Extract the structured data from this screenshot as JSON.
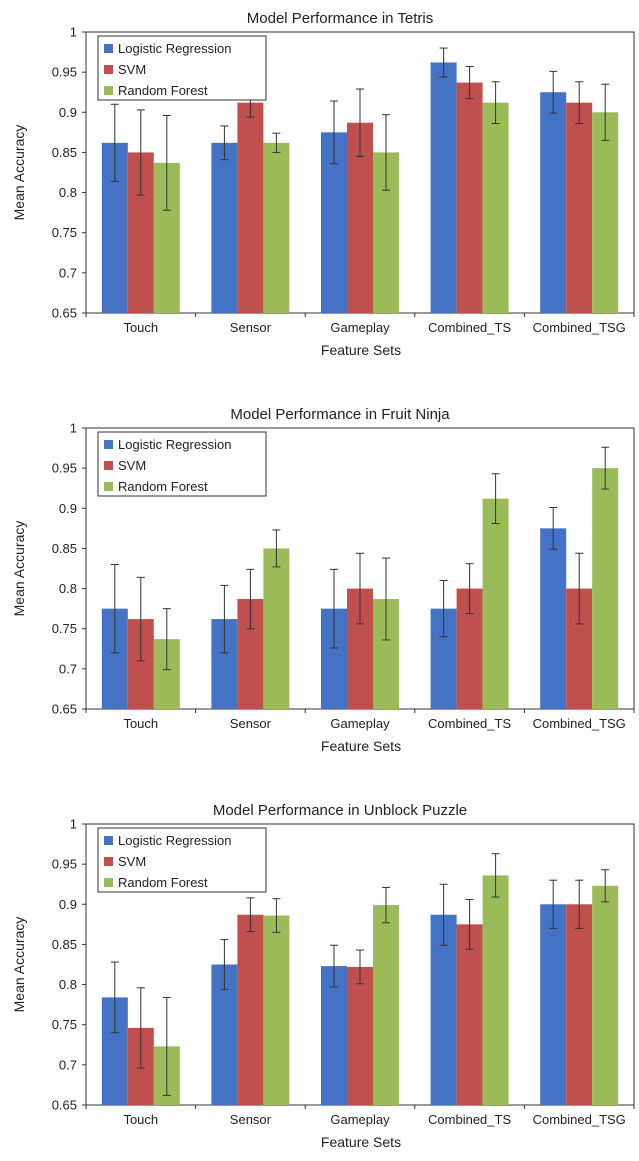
{
  "chart_data": [
    {
      "type": "bar",
      "title": "Model Performance in Tetris",
      "xlabel": "Feature Sets",
      "ylabel": "Mean Accuracy",
      "ylim": [
        0.65,
        1
      ],
      "yticks": [
        "0.65",
        "0.7",
        "0.75",
        "0.8",
        "0.85",
        "0.9",
        "0.95",
        "1"
      ],
      "categories": [
        "Touch",
        "Sensor",
        "Gameplay",
        "Combined_TS",
        "Combined_TSG"
      ],
      "legend_position": "top-left",
      "series": [
        {
          "name": "Logistic Regression",
          "color": "#4472C4",
          "values": [
            0.862,
            0.862,
            0.875,
            0.962,
            0.925
          ],
          "errors": [
            0.048,
            0.021,
            0.039,
            0.018,
            0.026
          ]
        },
        {
          "name": "SVM",
          "color": "#C0504D",
          "values": [
            0.85,
            0.912,
            0.887,
            0.937,
            0.912
          ],
          "errors": [
            0.053,
            0.018,
            0.042,
            0.02,
            0.026
          ]
        },
        {
          "name": "Random Forest",
          "color": "#9BBB59",
          "values": [
            0.837,
            0.862,
            0.85,
            0.912,
            0.9
          ],
          "errors": [
            0.059,
            0.012,
            0.047,
            0.026,
            0.035
          ]
        }
      ]
    },
    {
      "type": "bar",
      "title": "Model Performance in Fruit Ninja",
      "xlabel": "Feature Sets",
      "ylabel": "Mean Accuracy",
      "ylim": [
        0.65,
        1
      ],
      "yticks": [
        "0.65",
        "0.7",
        "0.75",
        "0.8",
        "0.85",
        "0.9",
        "0.95",
        "1"
      ],
      "categories": [
        "Touch",
        "Sensor",
        "Gameplay",
        "Combined_TS",
        "Combined_TSG"
      ],
      "legend_position": "top-left",
      "series": [
        {
          "name": "Logistic Regression",
          "color": "#4472C4",
          "values": [
            0.775,
            0.762,
            0.775,
            0.775,
            0.875
          ],
          "errors": [
            0.055,
            0.042,
            0.049,
            0.035,
            0.026
          ]
        },
        {
          "name": "SVM",
          "color": "#C0504D",
          "values": [
            0.762,
            0.787,
            0.8,
            0.8,
            0.8
          ],
          "errors": [
            0.052,
            0.037,
            0.044,
            0.031,
            0.044
          ]
        },
        {
          "name": "Random Forest",
          "color": "#9BBB59",
          "values": [
            0.737,
            0.85,
            0.787,
            0.912,
            0.95
          ],
          "errors": [
            0.038,
            0.023,
            0.051,
            0.031,
            0.026
          ]
        }
      ]
    },
    {
      "type": "bar",
      "title": "Model Performance in Unblock Puzzle",
      "xlabel": "Feature Sets",
      "ylabel": "Mean Accuracy",
      "ylim": [
        0.65,
        1
      ],
      "yticks": [
        "0.65",
        "0.7",
        "0.75",
        "0.8",
        "0.85",
        "0.9",
        "0.95",
        "1"
      ],
      "categories": [
        "Touch",
        "Sensor",
        "Gameplay",
        "Combined_TS",
        "Combined_TSG"
      ],
      "legend_position": "top-left",
      "series": [
        {
          "name": "Logistic Regression",
          "color": "#4472C4",
          "values": [
            0.784,
            0.825,
            0.823,
            0.887,
            0.9
          ],
          "errors": [
            0.044,
            0.031,
            0.026,
            0.038,
            0.03
          ]
        },
        {
          "name": "SVM",
          "color": "#C0504D",
          "values": [
            0.746,
            0.887,
            0.822,
            0.875,
            0.9
          ],
          "errors": [
            0.05,
            0.021,
            0.021,
            0.031,
            0.03
          ]
        },
        {
          "name": "Random Forest",
          "color": "#9BBB59",
          "values": [
            0.723,
            0.886,
            0.899,
            0.936,
            0.923
          ],
          "errors": [
            0.061,
            0.021,
            0.022,
            0.027,
            0.02
          ]
        }
      ]
    }
  ]
}
